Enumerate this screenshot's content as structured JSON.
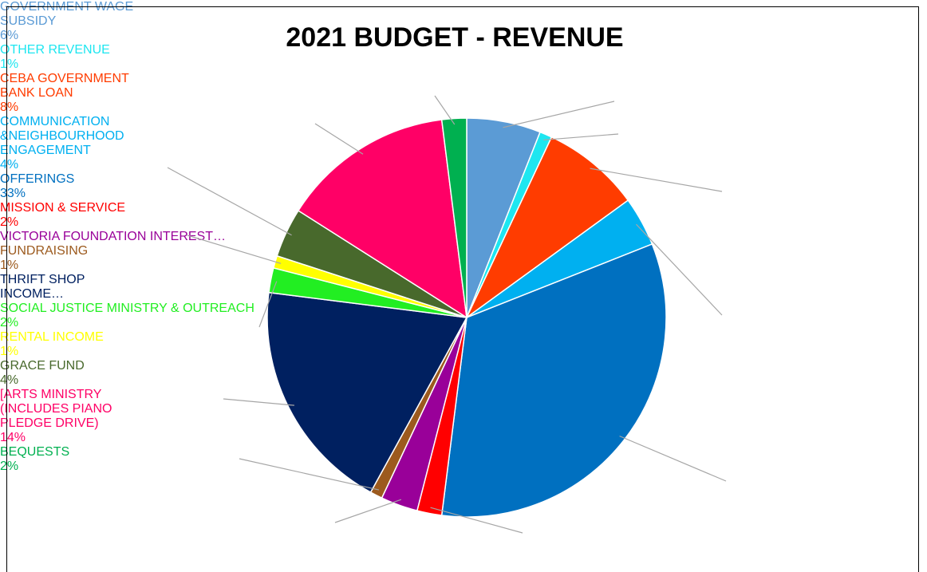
{
  "chart_data": {
    "type": "pie",
    "title": "2021 BUDGET - REVENUE",
    "categories": [
      "GOVERNMENT WAGE SUBSIDY",
      "OTHER REVENUE",
      "CEBA GOVERNMENT BANK LOAN",
      "COMMUNICATION &NEIGHBOURHOOD ENGAGEMENT",
      "OFFERINGS",
      "MISSION & SERVICE",
      "VICTORIA FOUNDATION INTEREST…",
      "FUNDRAISING",
      "THRIFT SHOP INCOME…",
      "SOCIAL JUSTICE MINISTRY & OUTREACH",
      "RENTAL INCOME",
      "GRACE FUND",
      "[ARTS MINISTRY (INCLUDES PIANO PLEDGE DRIVE)",
      "BEQUESTS"
    ],
    "values": [
      6,
      1,
      8,
      4,
      33,
      2,
      3,
      1,
      19,
      2,
      1,
      4,
      14,
      2
    ],
    "value_labels": [
      "6%",
      "1%",
      "8%",
      "4%",
      "33%",
      "2%",
      null,
      "1%",
      null,
      "2%",
      "1%",
      "4%",
      "14%",
      "2%"
    ],
    "colors": [
      "#5b9bd5",
      "#1ee6f0",
      "#ff3c00",
      "#00b0f0",
      "#0070c0",
      "#ff0000",
      "#990099",
      "#9c5a1e",
      "#002060",
      "#22ee22",
      "#ffff00",
      "#48692c",
      "#ff0066",
      "#00b050"
    ]
  }
}
